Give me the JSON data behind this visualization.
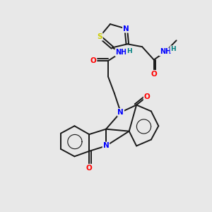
{
  "bg_color": "#e8e8e8",
  "bond_color": "#1a1a1a",
  "bond_width": 1.4,
  "atom_colors": {
    "N": "#0000ff",
    "O": "#ff0000",
    "S": "#cccc00",
    "H": "#008080",
    "C": "#1a1a1a"
  }
}
